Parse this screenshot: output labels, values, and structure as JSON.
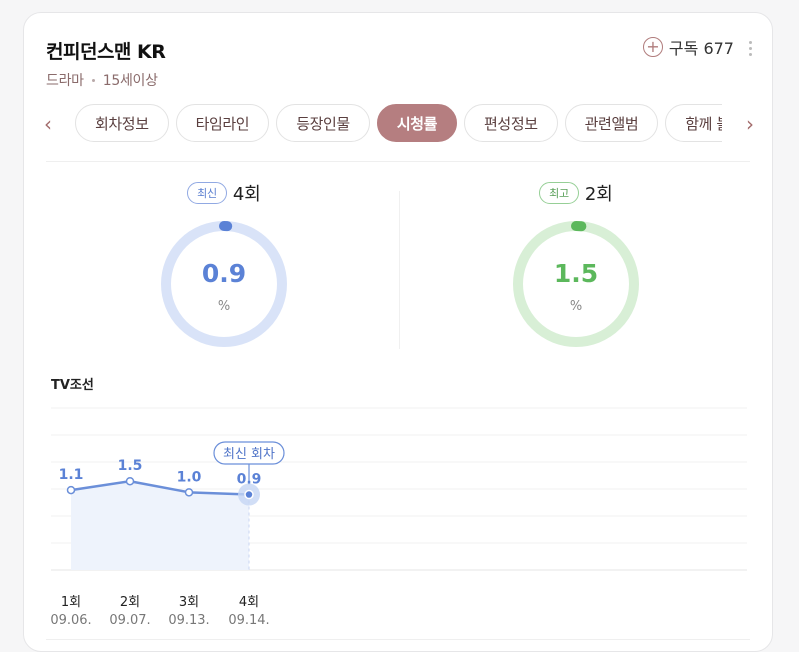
{
  "program": {
    "title": "컨피던스맨 KR",
    "genre": "드라마",
    "rating": "15세이상",
    "subscribe_label": "구독 677"
  },
  "tabs": [
    {
      "label": "회차정보",
      "active": false
    },
    {
      "label": "타임라인",
      "active": false
    },
    {
      "label": "등장인물",
      "active": false
    },
    {
      "label": "시청률",
      "active": true
    },
    {
      "label": "편성정보",
      "active": false
    },
    {
      "label": "관련앨범",
      "active": false
    },
    {
      "label": "함께 볼만한",
      "active": false
    }
  ],
  "stats": {
    "latest": {
      "badge": "최신",
      "episode": "4회",
      "value": "0.9",
      "unit": "%",
      "color": "#5b82d6",
      "fraction": 0.009
    },
    "best": {
      "badge": "최고",
      "episode": "2회",
      "value": "1.5",
      "unit": "%",
      "color": "#5cb85c",
      "fraction": 0.015
    }
  },
  "chart_data": {
    "type": "line",
    "title": "TV조선",
    "categories": [
      "1회",
      "2회",
      "3회",
      "4회"
    ],
    "dates": [
      "09.06.",
      "09.07.",
      "09.13.",
      "09.14."
    ],
    "values": [
      1.1,
      1.5,
      1.0,
      0.9
    ],
    "callout": "최신 회차",
    "callout_index": 3,
    "ylim": [
      -2.5,
      4.8
    ],
    "grid": true,
    "colors": {
      "line": "#6b8fd9",
      "fill": "#eef3fc"
    }
  }
}
